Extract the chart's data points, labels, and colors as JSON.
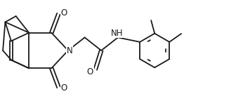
{
  "figsize": [
    3.56,
    1.44
  ],
  "dpi": 100,
  "bg_color": "#ffffff",
  "line_color": "#1a1a1a",
  "line_width": 1.3,
  "font_size": 8.5,
  "xlim": [
    0,
    10.5
  ],
  "ylim": [
    0,
    4.2
  ]
}
